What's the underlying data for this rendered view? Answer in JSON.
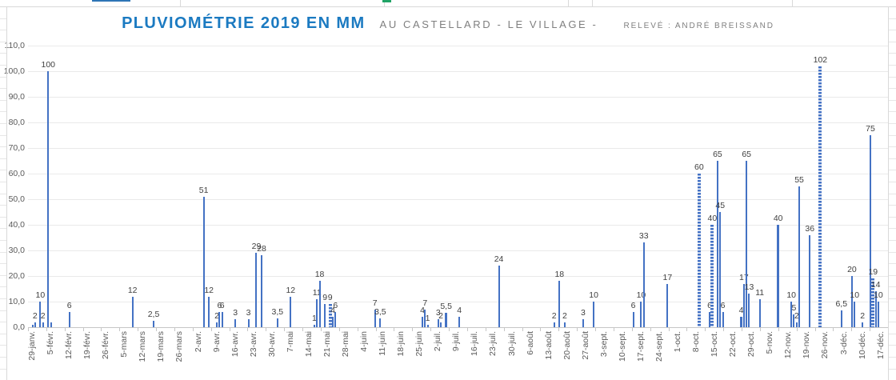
{
  "header": {
    "title": "PLUVIOMÉTRIE 2019 EN MM",
    "subtitle": "AU CASTELLARD - LE VILLAGE -",
    "credit": "RELEVÉ : ANDRÉ BREISSAND"
  },
  "chart_data": {
    "type": "bar",
    "title": "PLUVIOMÉTRIE 2019 EN MM",
    "subtitle": "AU CASTELLARD - LE VILLAGE -",
    "annotation": "RELEVÉ : ANDRÉ BREISSAND",
    "xlabel": "",
    "ylabel": "",
    "ylim": [
      0,
      110
    ],
    "ytick_step": 10,
    "ytick_labels": [
      "0,0",
      "10,0",
      "20,0",
      "30,0",
      "40,0",
      "50,0",
      "60,0",
      "70,0",
      "80,0",
      "90,0",
      "100,0",
      "110,0"
    ],
    "x_tick_labels": [
      "29-janv.",
      "5-févr.",
      "12-févr.",
      "19-févr.",
      "26-févr.",
      "5-mars",
      "12-mars",
      "19-mars",
      "26-mars",
      "2-avr.",
      "9-avr.",
      "16-avr.",
      "23-avr.",
      "30-avr.",
      "7-mai",
      "14-mai",
      "21-mai",
      "28-mai",
      "4-juin",
      "11-juin",
      "18-juin",
      "25-juin",
      "2-juil.",
      "9-juil.",
      "16-juil.",
      "23-juil.",
      "30-juil.",
      "6-août",
      "13-août",
      "20-août",
      "27-août",
      "3-sept.",
      "10-sept.",
      "17-sept.",
      "24-sept.",
      "1-oct.",
      "8-oct.",
      "15-oct.",
      "22-oct.",
      "29-oct.",
      "5-nov.",
      "12-nov.",
      "19-nov.",
      "26-nov.",
      "3-déc.",
      "10-déc.",
      "17-déc."
    ],
    "days_per_tick": 7,
    "grid": "horizontal",
    "legend": "none",
    "bar_color": "#4472C4",
    "axis_text_color": "#595959",
    "label_text_color": "#404040",
    "title_color": "#1B7AC1",
    "subtitle_color": "#7F7F7F",
    "points": [
      [
        0,
        1,
        "",
        0
      ],
      [
        1,
        2,
        "2",
        0
      ],
      [
        3,
        10,
        "10",
        0
      ],
      [
        4,
        2,
        "2",
        0
      ],
      [
        6,
        100,
        "100",
        0
      ],
      [
        7,
        2,
        "",
        0
      ],
      [
        14,
        6,
        "6",
        0
      ],
      [
        38,
        12,
        "12",
        0
      ],
      [
        46,
        2.5,
        "2,5",
        0
      ],
      [
        65,
        51,
        "51",
        0
      ],
      [
        67,
        12,
        "12",
        0
      ],
      [
        70,
        2,
        "2",
        0
      ],
      [
        71,
        6,
        "6",
        0
      ],
      [
        72,
        6,
        "6",
        0
      ],
      [
        77,
        3,
        "3",
        0
      ],
      [
        82,
        3,
        "3",
        0
      ],
      [
        85,
        29,
        "29",
        0
      ],
      [
        87,
        28,
        "28",
        0
      ],
      [
        93,
        3.5,
        "3,5",
        0
      ],
      [
        98,
        12,
        "12",
        0
      ],
      [
        107,
        1,
        "1",
        0
      ],
      [
        108,
        11,
        "11",
        0
      ],
      [
        109,
        18,
        "18",
        0
      ],
      [
        111,
        9,
        "9",
        0
      ],
      [
        113,
        9,
        "9",
        2
      ],
      [
        114,
        4,
        "4",
        0
      ],
      [
        115,
        6,
        "6",
        0
      ],
      [
        130,
        7,
        "7",
        0
      ],
      [
        132,
        3.5,
        "3,5",
        0
      ],
      [
        148,
        4,
        "4",
        0
      ],
      [
        149,
        7,
        "7",
        0
      ],
      [
        150,
        1,
        "1",
        0
      ],
      [
        154,
        3,
        "3",
        0
      ],
      [
        155,
        2,
        "2",
        0
      ],
      [
        157,
        5.5,
        "5,5",
        1
      ],
      [
        162,
        4,
        "4",
        0
      ],
      [
        177,
        24,
        "24",
        0
      ],
      [
        198,
        2,
        "2",
        0
      ],
      [
        200,
        18,
        "18",
        0
      ],
      [
        202,
        2,
        "2",
        0
      ],
      [
        209,
        3,
        "3",
        0
      ],
      [
        213,
        10,
        "10",
        0
      ],
      [
        228,
        6,
        "6",
        0
      ],
      [
        231,
        10,
        "10",
        0
      ],
      [
        232,
        33,
        "33",
        0
      ],
      [
        241,
        17,
        "17",
        0
      ],
      [
        253,
        60,
        "60",
        2
      ],
      [
        257,
        6,
        "6",
        0
      ],
      [
        258,
        40,
        "40",
        2
      ],
      [
        260,
        65,
        "65",
        0
      ],
      [
        261,
        45,
        "45",
        0
      ],
      [
        262,
        6,
        "6",
        0
      ],
      [
        269,
        4,
        "4",
        1
      ],
      [
        270,
        17,
        "17",
        0
      ],
      [
        271,
        65,
        "65",
        0
      ],
      [
        272,
        13,
        "13",
        0
      ],
      [
        276,
        11,
        "11",
        0
      ],
      [
        283,
        40,
        "40",
        1
      ],
      [
        288,
        10,
        "10",
        0
      ],
      [
        289,
        5,
        "5",
        0
      ],
      [
        290,
        2,
        "2",
        0
      ],
      [
        291,
        55,
        "55",
        0
      ],
      [
        295,
        36,
        "36",
        0
      ],
      [
        299,
        102,
        "102",
        2
      ],
      [
        307,
        6.5,
        "6,5",
        0
      ],
      [
        311,
        20,
        "20",
        0
      ],
      [
        312,
        10,
        "10",
        0
      ],
      [
        315,
        2,
        "2",
        0
      ],
      [
        318,
        75,
        "75",
        0
      ],
      [
        319,
        19,
        "19",
        2
      ],
      [
        320,
        14,
        "14",
        0
      ],
      [
        321,
        10,
        "10",
        0
      ]
    ]
  },
  "worksheet": {
    "top_col_borders": [
      225,
      480,
      710,
      740,
      990
    ],
    "green_marker_x": 478,
    "blue_artifact_x": 115
  }
}
